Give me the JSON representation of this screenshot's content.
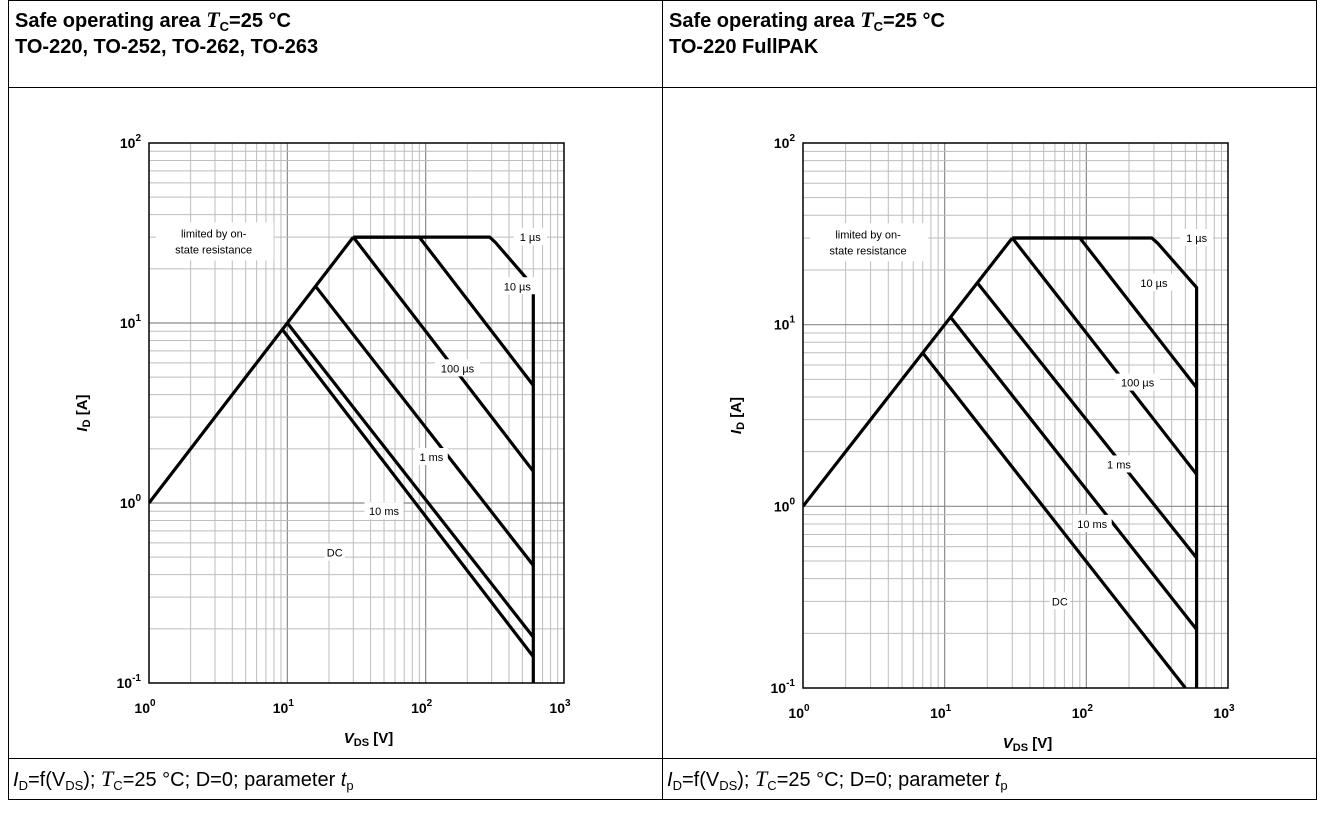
{
  "left": {
    "title_prefix": "Safe operating area ",
    "title_var": "T",
    "title_var_sub": "C",
    "title_suffix": "=25 °C",
    "subtitle": "TO-220, TO-252, TO-262, TO-263",
    "caption": {
      "i": "I",
      "i_sub": "D",
      "f": "=f(V",
      "ds": "DS",
      "mid": "); ",
      "tc": "T",
      "tc_sub": "C",
      "rest": "=25 °C; D=0; parameter ",
      "tp": "t",
      "tp_sub": "p"
    }
  },
  "right": {
    "title_prefix": "Safe operating area ",
    "title_var": "T",
    "title_var_sub": "C",
    "title_suffix": "=25 °C",
    "subtitle": "TO-220 FullPAK",
    "caption": {
      "i": "I",
      "i_sub": "D",
      "f": "=f(V",
      "ds": "DS",
      "mid": "); ",
      "tc": "T",
      "tc_sub": "C",
      "rest": "=25 °C; D=0; parameter ",
      "tp": "t",
      "tp_sub": "p"
    }
  },
  "chart_data": [
    {
      "type": "line",
      "x_scale": "log",
      "y_scale": "log",
      "xlim": [
        1,
        1000
      ],
      "ylim": [
        0.1,
        100
      ],
      "xlabel": "V",
      "xlabel_sub": "DS",
      "xlabel_unit": " [V]",
      "ylabel": "I",
      "ylabel_sub": "D",
      "ylabel_unit": " [A]",
      "x_ticks": [
        {
          "base": "10",
          "exp": "0"
        },
        {
          "base": "10",
          "exp": "1"
        },
        {
          "base": "10",
          "exp": "2"
        },
        {
          "base": "10",
          "exp": "3"
        }
      ],
      "y_ticks": [
        {
          "base": "10",
          "exp": "-1"
        },
        {
          "base": "10",
          "exp": "0"
        },
        {
          "base": "10",
          "exp": "1"
        },
        {
          "base": "10",
          "exp": "2"
        }
      ],
      "grid": true,
      "annotation": [
        "limited by on-",
        "state resistance"
      ],
      "rds_on_line": {
        "x": [
          1,
          30
        ],
        "y": [
          1,
          30
        ]
      },
      "series": [
        {
          "name": "1 µs",
          "x": [
            30,
            290,
            320,
            600,
            600
          ],
          "y": [
            30,
            30,
            28,
            16,
            0.1
          ],
          "label_at": [
            570,
            30
          ]
        },
        {
          "name": "10 µs",
          "x": [
            30,
            90,
            600
          ],
          "y": [
            30,
            30,
            4.5
          ],
          "label_at": [
            460,
            16
          ]
        },
        {
          "name": "100 µs",
          "x": [
            30,
            600
          ],
          "y": [
            30,
            1.5
          ],
          "label_at": [
            170,
            5.6
          ]
        },
        {
          "name": "1 ms",
          "x": [
            16,
            600
          ],
          "y": [
            16,
            0.45
          ],
          "label_at": [
            110,
            1.8
          ]
        },
        {
          "name": "10 ms",
          "x": [
            10,
            600
          ],
          "y": [
            10,
            0.18
          ],
          "label_at": [
            50,
            0.9
          ]
        },
        {
          "name": "DC",
          "x": [
            9.2,
            600
          ],
          "y": [
            9.2,
            0.14
          ],
          "label_at": [
            22,
            0.53
          ]
        }
      ]
    },
    {
      "type": "line",
      "x_scale": "log",
      "y_scale": "log",
      "xlim": [
        1,
        1000
      ],
      "ylim": [
        0.1,
        100
      ],
      "xlabel": "V",
      "xlabel_sub": "DS",
      "xlabel_unit": " [V]",
      "ylabel": "I",
      "ylabel_sub": "D",
      "ylabel_unit": " [A]",
      "x_ticks": [
        {
          "base": "10",
          "exp": "0"
        },
        {
          "base": "10",
          "exp": "1"
        },
        {
          "base": "10",
          "exp": "2"
        },
        {
          "base": "10",
          "exp": "3"
        }
      ],
      "y_ticks": [
        {
          "base": "10",
          "exp": "-1"
        },
        {
          "base": "10",
          "exp": "0"
        },
        {
          "base": "10",
          "exp": "1"
        },
        {
          "base": "10",
          "exp": "2"
        }
      ],
      "grid": true,
      "annotation": [
        "limited by on-",
        "state resistance"
      ],
      "rds_on_line": {
        "x": [
          1,
          30
        ],
        "y": [
          1,
          30
        ]
      },
      "series": [
        {
          "name": "1 µs",
          "x": [
            30,
            290,
            320,
            600,
            600
          ],
          "y": [
            30,
            30,
            28,
            16,
            0.1
          ],
          "label_at": [
            600,
            30
          ]
        },
        {
          "name": "10 µs",
          "x": [
            30,
            90,
            600
          ],
          "y": [
            30,
            30,
            4.5
          ],
          "label_at": [
            300,
            17
          ]
        },
        {
          "name": "100 µs",
          "x": [
            30,
            600
          ],
          "y": [
            30,
            1.5
          ],
          "label_at": [
            230,
            4.8
          ]
        },
        {
          "name": "1 ms",
          "x": [
            17,
            600
          ],
          "y": [
            17,
            0.52
          ],
          "label_at": [
            170,
            1.7
          ]
        },
        {
          "name": "10 ms",
          "x": [
            11,
            600
          ],
          "y": [
            11,
            0.21
          ],
          "label_at": [
            110,
            0.8
          ]
        },
        {
          "name": "DC",
          "x": [
            7,
            500
          ],
          "y": [
            7,
            0.1
          ],
          "label_at": [
            65,
            0.3
          ]
        }
      ]
    }
  ]
}
